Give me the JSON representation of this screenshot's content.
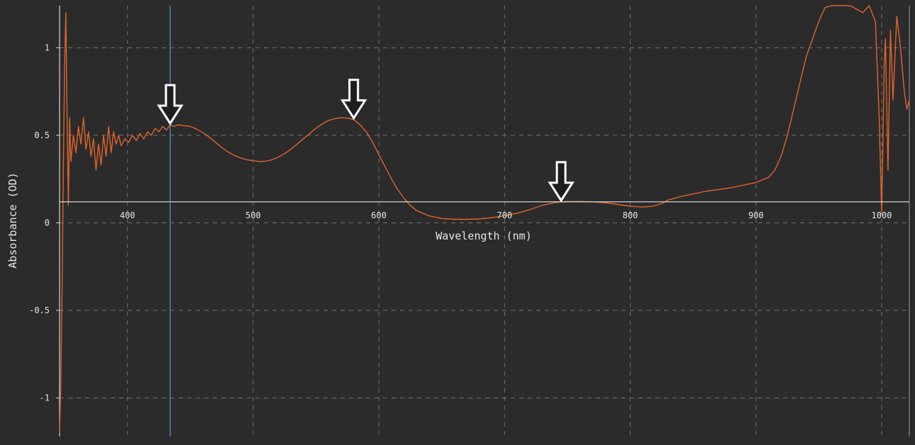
{
  "chart_data": {
    "type": "line",
    "title": "",
    "xlabel": "Wavelength (nm)",
    "ylabel": "Absorbance (OD)",
    "xlim": [
      346,
      1022
    ],
    "ylim": [
      -1.22,
      1.24
    ],
    "x_ticks": [
      400,
      500,
      600,
      700,
      800,
      900,
      1000
    ],
    "x_tick_labels": [
      "400",
      "500",
      "600",
      "700",
      "800",
      "900",
      "1000"
    ],
    "y_ticks": [
      1,
      0.5,
      0,
      -0.5,
      -1
    ],
    "y_tick_labels": [
      "1",
      "0.5",
      "0",
      "-0.5",
      "-1"
    ],
    "grid": true,
    "grid_style": "dashed",
    "legend": "none",
    "colors": {
      "background": "#2b2b2b",
      "series": "#e0642a",
      "grid": "#707070",
      "axis": "#d8d8d8",
      "cursor": "#4a9fd8",
      "baseline": "#e6e6e6",
      "arrow_fill": "#1e1e1e",
      "arrow_stroke": "#ffffff"
    },
    "cursor_x": 434,
    "baseline_y": 0.12,
    "marker_arrows_x": [
      434,
      580,
      745
    ],
    "series": [
      {
        "values": [
          [
            346,
            -1.2
          ],
          [
            347,
            -0.9
          ],
          [
            348,
            -0.4
          ],
          [
            349,
            0.3
          ],
          [
            350,
            0.9
          ],
          [
            351,
            1.2
          ],
          [
            352,
            0.6
          ],
          [
            353,
            0.1
          ],
          [
            354,
            0.6
          ],
          [
            355,
            0.35
          ],
          [
            357,
            0.5
          ],
          [
            359,
            0.4
          ],
          [
            361,
            0.55
          ],
          [
            363,
            0.45
          ],
          [
            365,
            0.6
          ],
          [
            367,
            0.42
          ],
          [
            369,
            0.52
          ],
          [
            371,
            0.38
          ],
          [
            373,
            0.48
          ],
          [
            375,
            0.3
          ],
          [
            377,
            0.45
          ],
          [
            379,
            0.33
          ],
          [
            381,
            0.5
          ],
          [
            383,
            0.38
          ],
          [
            385,
            0.55
          ],
          [
            387,
            0.4
          ],
          [
            389,
            0.52
          ],
          [
            391,
            0.45
          ],
          [
            393,
            0.5
          ],
          [
            395,
            0.44
          ],
          [
            398,
            0.48
          ],
          [
            401,
            0.46
          ],
          [
            404,
            0.5
          ],
          [
            407,
            0.47
          ],
          [
            410,
            0.51
          ],
          [
            413,
            0.48
          ],
          [
            416,
            0.52
          ],
          [
            419,
            0.5
          ],
          [
            422,
            0.54
          ],
          [
            425,
            0.52
          ],
          [
            428,
            0.55
          ],
          [
            431,
            0.53
          ],
          [
            434,
            0.56
          ],
          [
            437,
            0.55
          ],
          [
            440,
            0.56
          ],
          [
            445,
            0.555
          ],
          [
            450,
            0.55
          ],
          [
            455,
            0.535
          ],
          [
            460,
            0.515
          ],
          [
            465,
            0.49
          ],
          [
            470,
            0.46
          ],
          [
            475,
            0.43
          ],
          [
            480,
            0.405
          ],
          [
            485,
            0.385
          ],
          [
            490,
            0.37
          ],
          [
            495,
            0.36
          ],
          [
            500,
            0.355
          ],
          [
            505,
            0.35
          ],
          [
            510,
            0.352
          ],
          [
            515,
            0.36
          ],
          [
            520,
            0.375
          ],
          [
            525,
            0.395
          ],
          [
            530,
            0.42
          ],
          [
            535,
            0.45
          ],
          [
            540,
            0.48
          ],
          [
            545,
            0.51
          ],
          [
            550,
            0.54
          ],
          [
            555,
            0.565
          ],
          [
            560,
            0.585
          ],
          [
            565,
            0.595
          ],
          [
            570,
            0.6
          ],
          [
            575,
            0.598
          ],
          [
            580,
            0.59
          ],
          [
            585,
            0.56
          ],
          [
            590,
            0.52
          ],
          [
            595,
            0.46
          ],
          [
            600,
            0.39
          ],
          [
            605,
            0.32
          ],
          [
            610,
            0.25
          ],
          [
            615,
            0.19
          ],
          [
            620,
            0.14
          ],
          [
            625,
            0.1
          ],
          [
            630,
            0.07
          ],
          [
            640,
            0.04
          ],
          [
            650,
            0.025
          ],
          [
            660,
            0.02
          ],
          [
            670,
            0.02
          ],
          [
            680,
            0.022
          ],
          [
            690,
            0.03
          ],
          [
            700,
            0.04
          ],
          [
            710,
            0.055
          ],
          [
            720,
            0.075
          ],
          [
            730,
            0.1
          ],
          [
            740,
            0.115
          ],
          [
            745,
            0.12
          ],
          [
            750,
            0.122
          ],
          [
            760,
            0.122
          ],
          [
            770,
            0.12
          ],
          [
            780,
            0.115
          ],
          [
            790,
            0.105
          ],
          [
            800,
            0.095
          ],
          [
            810,
            0.09
          ],
          [
            818,
            0.095
          ],
          [
            825,
            0.11
          ],
          [
            830,
            0.13
          ],
          [
            840,
            0.15
          ],
          [
            850,
            0.165
          ],
          [
            860,
            0.18
          ],
          [
            870,
            0.19
          ],
          [
            880,
            0.2
          ],
          [
            890,
            0.215
          ],
          [
            900,
            0.23
          ],
          [
            910,
            0.26
          ],
          [
            915,
            0.3
          ],
          [
            920,
            0.38
          ],
          [
            925,
            0.5
          ],
          [
            930,
            0.65
          ],
          [
            935,
            0.8
          ],
          [
            940,
            0.95
          ],
          [
            945,
            1.05
          ],
          [
            950,
            1.15
          ],
          [
            955,
            1.23
          ],
          [
            960,
            1.26
          ],
          [
            965,
            1.26
          ],
          [
            970,
            1.25
          ],
          [
            975,
            1.24
          ],
          [
            980,
            1.22
          ],
          [
            985,
            1.2
          ],
          [
            990,
            1.24
          ],
          [
            995,
            1.15
          ],
          [
            998,
            0.6
          ],
          [
            1000,
            0.05
          ],
          [
            1002,
            0.9
          ],
          [
            1003,
            1.05
          ],
          [
            1005,
            0.3
          ],
          [
            1007,
            1.1
          ],
          [
            1009,
            0.7
          ],
          [
            1012,
            1.18
          ],
          [
            1015,
            1.0
          ],
          [
            1018,
            0.75
          ],
          [
            1020,
            0.65
          ],
          [
            1022,
            0.7
          ]
        ]
      }
    ]
  }
}
